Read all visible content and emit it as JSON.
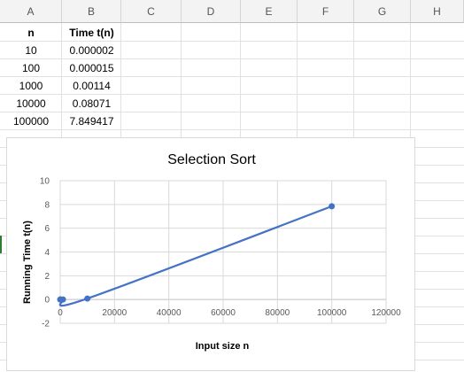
{
  "columns": [
    "A",
    "B",
    "C",
    "D",
    "E",
    "F",
    "G",
    "H"
  ],
  "table": {
    "headers": [
      "n",
      "Time t(n)"
    ],
    "rows": [
      [
        "10",
        "0.000002"
      ],
      [
        "100",
        "0.000015"
      ],
      [
        "1000",
        "0.00114"
      ],
      [
        "10000",
        "0.08071"
      ],
      [
        "100000",
        "7.849417"
      ]
    ]
  },
  "colors": {
    "series": "#4472C4",
    "grid": "#d9d9d9",
    "header_bg": "#f3f3f3"
  },
  "chart_data": {
    "type": "scatter",
    "title": "Selection Sort",
    "xlabel": "Input size n",
    "ylabel": "Running Time t(n)",
    "x": [
      10,
      100,
      1000,
      10000,
      100000
    ],
    "y": [
      2e-06,
      1.5e-05,
      0.00114,
      0.08071,
      7.849417
    ],
    "xlim": [
      0,
      120000
    ],
    "ylim": [
      -2,
      10
    ],
    "xticks": [
      0,
      20000,
      40000,
      60000,
      80000,
      100000,
      120000
    ],
    "yticks": [
      -2,
      0,
      2,
      4,
      6,
      8,
      10
    ],
    "smooth_line": true,
    "grid": true,
    "legend": "none"
  }
}
